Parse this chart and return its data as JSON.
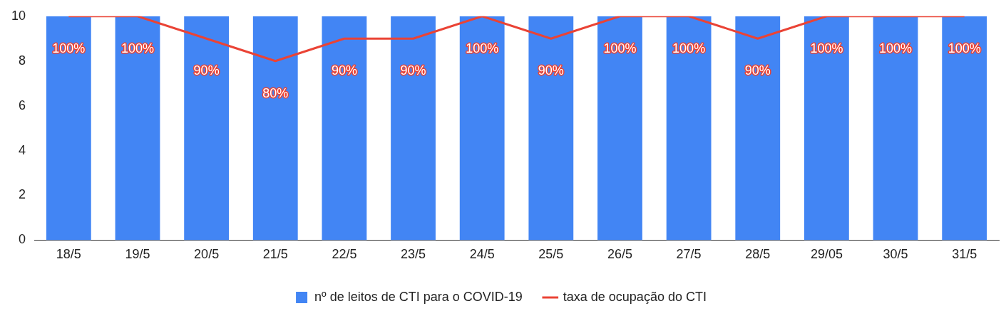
{
  "chart_data": {
    "type": "bar",
    "categories": [
      "18/5",
      "19/5",
      "20/5",
      "21/5",
      "22/5",
      "23/5",
      "24/5",
      "25/5",
      "26/5",
      "27/5",
      "28/5",
      "29/05",
      "30/5",
      "31/5"
    ],
    "series": [
      {
        "name": "nº de leitos de CTI para o COVID-19",
        "color": "#4285f4",
        "values": [
          10,
          10,
          10,
          10,
          10,
          10,
          10,
          10,
          10,
          10,
          10,
          10,
          10,
          10
        ]
      },
      {
        "name": "taxa de ocupação do CTI",
        "type": "line",
        "color": "#ea4335",
        "axis": "y2",
        "values": [
          100,
          100,
          90,
          80,
          90,
          90,
          100,
          90,
          100,
          100,
          90,
          100,
          100,
          100
        ],
        "value_labels": [
          "100%",
          "100%",
          "90%",
          "80%",
          "90%",
          "90%",
          "100%",
          "90%",
          "100%",
          "100%",
          "90%",
          "100%",
          "100%",
          "100%"
        ]
      }
    ],
    "ylim": [
      0,
      10
    ],
    "yticks": [
      0,
      2,
      4,
      6,
      8,
      10
    ],
    "y2lim": [
      0,
      100
    ],
    "grid": false,
    "legend": "bottom",
    "marker": "none",
    "line_style": "solid"
  }
}
